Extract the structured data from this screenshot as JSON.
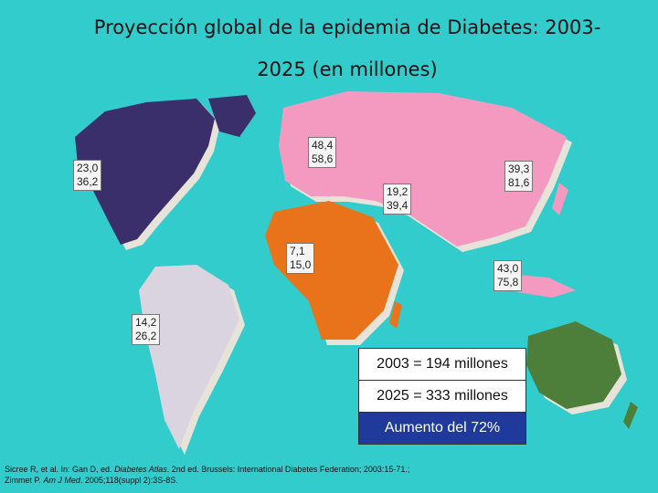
{
  "title": {
    "line1": "Proyección global de la epidemia de Diabetes: 2003-",
    "line2": "2025 (en millones)"
  },
  "regions": [
    {
      "name": "north-america",
      "v2003": "23,0",
      "v2025": "36,2"
    },
    {
      "name": "europe",
      "v2003": "48,4",
      "v2025": "58,6"
    },
    {
      "name": "middle-east",
      "v2003": "19,2",
      "v2025": "39,4"
    },
    {
      "name": "africa",
      "v2003": "7,1",
      "v2025": "15,0"
    },
    {
      "name": "western-pacific",
      "v2003": "43,0",
      "v2025": "75,8"
    },
    {
      "name": "south-america",
      "v2003": "14,2",
      "v2025": "26,2"
    },
    {
      "name": "asia",
      "v2003": "39,3",
      "v2025": "81,6"
    }
  ],
  "summary": {
    "total_2003": "2003 = 194 millones",
    "total_2025": "2025 = 333 millones",
    "increase": "Aumento del 72%"
  },
  "citation": {
    "line1_a": "Sicree R, et al. In: Gan D, ed. ",
    "line1_b": "Diabetes Atlas",
    "line1_c": ". 2nd ed. Brussels: International Diabetes Federation; 2003:15-71.;",
    "line2_a": "Zimmet P. ",
    "line2_b": "Am J Med",
    "line2_c": ". 2005;118(suppl 2):3S-8S."
  },
  "colors": {
    "background": "#33cccc",
    "north_america": "#3b2f6b",
    "europe_asia": "#f49ac1",
    "africa": "#e8731a",
    "south_america": "#d9d4e0",
    "oceania": "#4e7f3a",
    "increase_box": "#1f3a9a"
  }
}
